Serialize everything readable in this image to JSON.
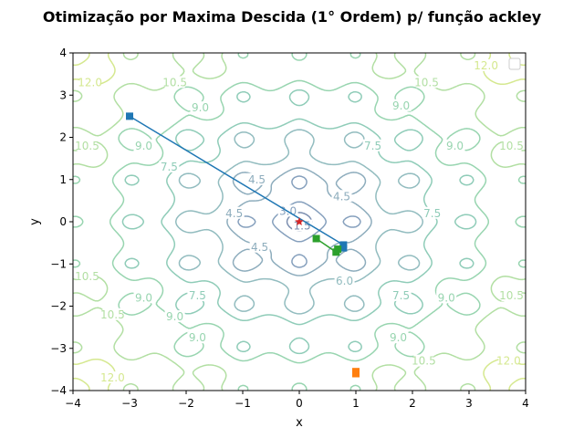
{
  "chart_data": {
    "type": "line",
    "title": "Otimização por Maxima Descida (1° Ordem) p/ função ackley",
    "xlabel": "x",
    "ylabel": "y",
    "xlim": [
      -4,
      4
    ],
    "ylim": [
      -4,
      4
    ],
    "x_ticks": [
      "−4",
      "−3",
      "−2",
      "−1",
      "0",
      "1",
      "2",
      "3",
      "4"
    ],
    "y_ticks": [
      "−4",
      "−3",
      "−2",
      "−1",
      "0",
      "1",
      "2",
      "3",
      "4"
    ],
    "grid": false,
    "legend": "top-right",
    "contour": {
      "function": "ackley",
      "levels": [
        1.5,
        3.0,
        4.5,
        6.0,
        7.5,
        9.0,
        10.5,
        12.0
      ],
      "level_labels": [
        {
          "text": "1.5",
          "x": 0.05,
          "y": -0.1
        },
        {
          "text": "3.0",
          "x": -0.2,
          "y": 0.25
        },
        {
          "text": "4.5",
          "x": -1.15,
          "y": 0.2
        },
        {
          "text": "4.5",
          "x": -0.7,
          "y": -0.6
        },
        {
          "text": "4.5",
          "x": 0.75,
          "y": 0.6
        },
        {
          "text": "4.5",
          "x": -0.75,
          "y": 1.0
        },
        {
          "text": "6.0",
          "x": 0.8,
          "y": -1.4
        },
        {
          "text": "7.5",
          "x": -2.3,
          "y": 1.3
        },
        {
          "text": "7.5",
          "x": 1.3,
          "y": 1.8
        },
        {
          "text": "7.5",
          "x": 2.35,
          "y": 0.2
        },
        {
          "text": "7.5",
          "x": -1.8,
          "y": -1.75
        },
        {
          "text": "7.5",
          "x": 1.8,
          "y": -1.75
        },
        {
          "text": "9.0",
          "x": -1.75,
          "y": 2.7
        },
        {
          "text": "9.0",
          "x": 1.8,
          "y": 2.75
        },
        {
          "text": "9.0",
          "x": -2.75,
          "y": 1.8
        },
        {
          "text": "9.0",
          "x": 2.75,
          "y": 1.8
        },
        {
          "text": "9.0",
          "x": -2.75,
          "y": -1.8
        },
        {
          "text": "9.0",
          "x": 2.6,
          "y": -1.8
        },
        {
          "text": "9.0",
          "x": -2.2,
          "y": -2.25
        },
        {
          "text": "9.0",
          "x": -1.8,
          "y": -2.75
        },
        {
          "text": "9.0",
          "x": 1.75,
          "y": -2.75
        },
        {
          "text": "10.5",
          "x": -2.2,
          "y": 3.3
        },
        {
          "text": "10.5",
          "x": 2.25,
          "y": 3.3
        },
        {
          "text": "10.5",
          "x": -3.75,
          "y": 1.8
        },
        {
          "text": "10.5",
          "x": 3.75,
          "y": 1.8
        },
        {
          "text": "10.5",
          "x": -3.75,
          "y": -1.3
        },
        {
          "text": "10.5",
          "x": 3.75,
          "y": -1.75
        },
        {
          "text": "10.5",
          "x": -3.3,
          "y": -2.2
        },
        {
          "text": "10.5",
          "x": 2.2,
          "y": -3.3
        },
        {
          "text": "12.0",
          "x": -3.7,
          "y": 3.3
        },
        {
          "text": "12.0",
          "x": 3.3,
          "y": 3.7
        },
        {
          "text": "12.0",
          "x": -3.3,
          "y": -3.7
        },
        {
          "text": "12.0",
          "x": 3.7,
          "y": -3.3
        }
      ]
    },
    "series": [
      {
        "color": "#1f77b4",
        "marker": "square",
        "x": [
          -3.0,
          0.78,
          0.78
        ],
        "y": [
          2.5,
          -0.55,
          -0.62
        ]
      },
      {
        "color": "#ff7f0e",
        "marker": "square",
        "x": [
          1.0,
          1.0
        ],
        "y": [
          -3.55,
          -3.6
        ]
      },
      {
        "color": "#2ca02c",
        "marker": "square",
        "x": [
          0.3,
          0.65,
          0.68
        ],
        "y": [
          -0.4,
          -0.72,
          -0.65
        ]
      }
    ],
    "optimum": {
      "x": 0,
      "y": 0,
      "marker": "star",
      "color": "#d62728"
    }
  }
}
